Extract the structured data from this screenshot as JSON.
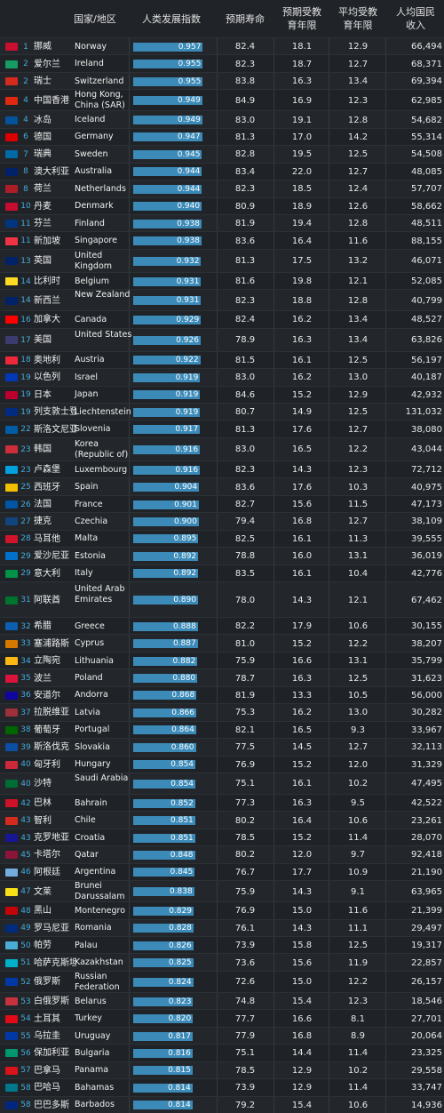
{
  "chart_data": {
    "type": "table",
    "columns": [
      "国家/地区",
      "人类发展指数",
      "预期寿命",
      "预期受教\n育年限",
      "平均受教\n育年限",
      "人均国民\n收入"
    ],
    "hdi_scale_max": 1.0,
    "rows": [
      {
        "rank": "1",
        "zh": "挪威",
        "en": "Norway",
        "flag": "#c8102e",
        "hdi": "0.957",
        "life": "82.4",
        "expected_school": "18.1",
        "mean_school": "12.9",
        "gni": "66,494"
      },
      {
        "rank": "2",
        "zh": "爱尔兰",
        "en": "Ireland",
        "flag": "#169b62",
        "hdi": "0.955",
        "life": "82.3",
        "expected_school": "18.7",
        "mean_school": "12.7",
        "gni": "68,371"
      },
      {
        "rank": "2",
        "zh": "瑞士",
        "en": "Switzerland",
        "flag": "#d52b1e",
        "hdi": "0.955",
        "life": "83.8",
        "expected_school": "16.3",
        "mean_school": "13.4",
        "gni": "69,394"
      },
      {
        "rank": "4",
        "zh": "中国香港",
        "en": "Hong Kong, China (SAR)",
        "flag": "#de2910",
        "hdi": "0.949",
        "life": "84.9",
        "expected_school": "16.9",
        "mean_school": "12.3",
        "gni": "62,985"
      },
      {
        "rank": "4",
        "zh": "冰岛",
        "en": "Iceland",
        "flag": "#02529c",
        "hdi": "0.949",
        "life": "83.0",
        "expected_school": "19.1",
        "mean_school": "12.8",
        "gni": "54,682"
      },
      {
        "rank": "6",
        "zh": "德国",
        "en": "Germany",
        "flag": "#dd0000",
        "hdi": "0.947",
        "life": "81.3",
        "expected_school": "17.0",
        "mean_school": "14.2",
        "gni": "55,314"
      },
      {
        "rank": "7",
        "zh": "瑞典",
        "en": "Sweden",
        "flag": "#006aa7",
        "hdi": "0.945",
        "life": "82.8",
        "expected_school": "19.5",
        "mean_school": "12.5",
        "gni": "54,508"
      },
      {
        "rank": "8",
        "zh": "澳大利亚",
        "en": "Australia",
        "flag": "#012169",
        "hdi": "0.944",
        "life": "83.4",
        "expected_school": "22.0",
        "mean_school": "12.7",
        "gni": "48,085"
      },
      {
        "rank": "8",
        "zh": "荷兰",
        "en": "Netherlands",
        "flag": "#ae1c28",
        "hdi": "0.944",
        "life": "82.3",
        "expected_school": "18.5",
        "mean_school": "12.4",
        "gni": "57,707"
      },
      {
        "rank": "10",
        "zh": "丹麦",
        "en": "Denmark",
        "flag": "#c60c30",
        "hdi": "0.940",
        "life": "80.9",
        "expected_school": "18.9",
        "mean_school": "12.6",
        "gni": "58,662"
      },
      {
        "rank": "11",
        "zh": "芬兰",
        "en": "Finland",
        "flag": "#003580",
        "hdi": "0.938",
        "life": "81.9",
        "expected_school": "19.4",
        "mean_school": "12.8",
        "gni": "48,511"
      },
      {
        "rank": "11",
        "zh": "新加坡",
        "en": "Singapore",
        "flag": "#ef3340",
        "hdi": "0.938",
        "life": "83.6",
        "expected_school": "16.4",
        "mean_school": "11.6",
        "gni": "88,155"
      },
      {
        "rank": "13",
        "zh": "英国",
        "en": "United Kingdom",
        "flag": "#012169",
        "hdi": "0.932",
        "life": "81.3",
        "expected_school": "17.5",
        "mean_school": "13.2",
        "gni": "46,071"
      },
      {
        "rank": "14",
        "zh": "比利时",
        "en": "Belgium",
        "flag": "#fdda24",
        "hdi": "0.931",
        "life": "81.6",
        "expected_school": "19.8",
        "mean_school": "12.1",
        "gni": "52,085"
      },
      {
        "rank": "14",
        "zh": "新西兰",
        "en": "New Zealand",
        "flag": "#012169",
        "hdi": "0.931",
        "life": "82.3",
        "expected_school": "18.8",
        "mean_school": "12.8",
        "gni": "40,799"
      },
      {
        "rank": "16",
        "zh": "加拿大",
        "en": "Canada",
        "flag": "#ff0000",
        "hdi": "0.929",
        "life": "82.4",
        "expected_school": "16.2",
        "mean_school": "13.4",
        "gni": "48,527"
      },
      {
        "rank": "17",
        "zh": "美国",
        "en": "United States",
        "flag": "#3c3b6e",
        "hdi": "0.926",
        "life": "78.9",
        "expected_school": "16.3",
        "mean_school": "13.4",
        "gni": "63,826"
      },
      {
        "rank": "18",
        "zh": "奥地利",
        "en": "Austria",
        "flag": "#ed2939",
        "hdi": "0.922",
        "life": "81.5",
        "expected_school": "16.1",
        "mean_school": "12.5",
        "gni": "56,197"
      },
      {
        "rank": "19",
        "zh": "以色列",
        "en": "Israel",
        "flag": "#0038b8",
        "hdi": "0.919",
        "life": "83.0",
        "expected_school": "16.2",
        "mean_school": "13.0",
        "gni": "40,187"
      },
      {
        "rank": "19",
        "zh": "日本",
        "en": "Japan",
        "flag": "#bc002d",
        "hdi": "0.919",
        "life": "84.6",
        "expected_school": "15.2",
        "mean_school": "12.9",
        "gni": "42,932"
      },
      {
        "rank": "19",
        "zh": "列支敦士登",
        "en": "Liechtenstein",
        "flag": "#002b7f",
        "hdi": "0.919",
        "life": "80.7",
        "expected_school": "14.9",
        "mean_school": "12.5",
        "gni": "131,032"
      },
      {
        "rank": "22",
        "zh": "斯洛文尼亚",
        "en": "Slovenia",
        "flag": "#005da4",
        "hdi": "0.917",
        "life": "81.3",
        "expected_school": "17.6",
        "mean_school": "12.7",
        "gni": "38,080"
      },
      {
        "rank": "23",
        "zh": "韩国",
        "en": "Korea (Republic of)",
        "flag": "#cd2e3a",
        "hdi": "0.916",
        "life": "83.0",
        "expected_school": "16.5",
        "mean_school": "12.2",
        "gni": "43,044"
      },
      {
        "rank": "23",
        "zh": "卢森堡",
        "en": "Luxembourg",
        "flag": "#00a1de",
        "hdi": "0.916",
        "life": "82.3",
        "expected_school": "14.3",
        "mean_school": "12.3",
        "gni": "72,712"
      },
      {
        "rank": "25",
        "zh": "西班牙",
        "en": "Spain",
        "flag": "#f1bf00",
        "hdi": "0.904",
        "life": "83.6",
        "expected_school": "17.6",
        "mean_school": "10.3",
        "gni": "40,975"
      },
      {
        "rank": "26",
        "zh": "法国",
        "en": "France",
        "flag": "#0055a4",
        "hdi": "0.901",
        "life": "82.7",
        "expected_school": "15.6",
        "mean_school": "11.5",
        "gni": "47,173"
      },
      {
        "rank": "27",
        "zh": "捷克",
        "en": "Czechia",
        "flag": "#11457e",
        "hdi": "0.900",
        "life": "79.4",
        "expected_school": "16.8",
        "mean_school": "12.7",
        "gni": "38,109"
      },
      {
        "rank": "28",
        "zh": "马耳他",
        "en": "Malta",
        "flag": "#cf142b",
        "hdi": "0.895",
        "life": "82.5",
        "expected_school": "16.1",
        "mean_school": "11.3",
        "gni": "39,555"
      },
      {
        "rank": "29",
        "zh": "爱沙尼亚",
        "en": "Estonia",
        "flag": "#0072ce",
        "hdi": "0.892",
        "life": "78.8",
        "expected_school": "16.0",
        "mean_school": "13.1",
        "gni": "36,019"
      },
      {
        "rank": "29",
        "zh": "意大利",
        "en": "Italy",
        "flag": "#009246",
        "hdi": "0.892",
        "life": "83.5",
        "expected_school": "16.1",
        "mean_school": "10.4",
        "gni": "42,776"
      },
      {
        "rank": "31",
        "zh": "阿联酋",
        "en": "United Arab Emirates",
        "flag": "#00732f",
        "hdi": "0.890",
        "life": "78.0",
        "expected_school": "14.3",
        "mean_school": "12.1",
        "gni": "67,462"
      },
      {
        "rank": "32",
        "zh": "希腊",
        "en": "Greece",
        "flag": "#0d5eaf",
        "hdi": "0.888",
        "life": "82.2",
        "expected_school": "17.9",
        "mean_school": "10.6",
        "gni": "30,155"
      },
      {
        "rank": "33",
        "zh": "塞浦路斯",
        "en": "Cyprus",
        "flag": "#d57800",
        "hdi": "0.887",
        "life": "81.0",
        "expected_school": "15.2",
        "mean_school": "12.2",
        "gni": "38,207"
      },
      {
        "rank": "34",
        "zh": "立陶宛",
        "en": "Lithuania",
        "flag": "#fdb913",
        "hdi": "0.882",
        "life": "75.9",
        "expected_school": "16.6",
        "mean_school": "13.1",
        "gni": "35,799"
      },
      {
        "rank": "35",
        "zh": "波兰",
        "en": "Poland",
        "flag": "#dc143c",
        "hdi": "0.880",
        "life": "78.7",
        "expected_school": "16.3",
        "mean_school": "12.5",
        "gni": "31,623"
      },
      {
        "rank": "36",
        "zh": "安道尔",
        "en": "Andorra",
        "flag": "#10069f",
        "hdi": "0.868",
        "life": "81.9",
        "expected_school": "13.3",
        "mean_school": "10.5",
        "gni": "56,000"
      },
      {
        "rank": "37",
        "zh": "拉脱维亚",
        "en": "Latvia",
        "flag": "#9e3039",
        "hdi": "0.866",
        "life": "75.3",
        "expected_school": "16.2",
        "mean_school": "13.0",
        "gni": "30,282"
      },
      {
        "rank": "38",
        "zh": "葡萄牙",
        "en": "Portugal",
        "flag": "#006600",
        "hdi": "0.864",
        "life": "82.1",
        "expected_school": "16.5",
        "mean_school": "9.3",
        "gni": "33,967"
      },
      {
        "rank": "39",
        "zh": "斯洛伐克",
        "en": "Slovakia",
        "flag": "#0b4ea2",
        "hdi": "0.860",
        "life": "77.5",
        "expected_school": "14.5",
        "mean_school": "12.7",
        "gni": "32,113"
      },
      {
        "rank": "40",
        "zh": "匈牙利",
        "en": "Hungary",
        "flag": "#ce2939",
        "hdi": "0.854",
        "life": "76.9",
        "expected_school": "15.2",
        "mean_school": "12.0",
        "gni": "31,329"
      },
      {
        "rank": "40",
        "zh": "沙特",
        "en": "Saudi Arabia",
        "flag": "#006c35",
        "hdi": "0.854",
        "life": "75.1",
        "expected_school": "16.1",
        "mean_school": "10.2",
        "gni": "47,495"
      },
      {
        "rank": "42",
        "zh": "巴林",
        "en": "Bahrain",
        "flag": "#ce1126",
        "hdi": "0.852",
        "life": "77.3",
        "expected_school": "16.3",
        "mean_school": "9.5",
        "gni": "42,522"
      },
      {
        "rank": "43",
        "zh": "智利",
        "en": "Chile",
        "flag": "#d52b1e",
        "hdi": "0.851",
        "life": "80.2",
        "expected_school": "16.4",
        "mean_school": "10.6",
        "gni": "23,261"
      },
      {
        "rank": "43",
        "zh": "克罗地亚",
        "en": "Croatia",
        "flag": "#171796",
        "hdi": "0.851",
        "life": "78.5",
        "expected_school": "15.2",
        "mean_school": "11.4",
        "gni": "28,070"
      },
      {
        "rank": "45",
        "zh": "卡塔尔",
        "en": "Qatar",
        "flag": "#8a1538",
        "hdi": "0.848",
        "life": "80.2",
        "expected_school": "12.0",
        "mean_school": "9.7",
        "gni": "92,418"
      },
      {
        "rank": "46",
        "zh": "阿根廷",
        "en": "Argentina",
        "flag": "#74acdf",
        "hdi": "0.845",
        "life": "76.7",
        "expected_school": "17.7",
        "mean_school": "10.9",
        "gni": "21,190"
      },
      {
        "rank": "47",
        "zh": "文莱",
        "en": "Brunei Darussalam",
        "flag": "#f7e017",
        "hdi": "0.838",
        "life": "75.9",
        "expected_school": "14.3",
        "mean_school": "9.1",
        "gni": "63,965"
      },
      {
        "rank": "48",
        "zh": "黑山",
        "en": "Montenegro",
        "flag": "#c40308",
        "hdi": "0.829",
        "life": "76.9",
        "expected_school": "15.0",
        "mean_school": "11.6",
        "gni": "21,399"
      },
      {
        "rank": "49",
        "zh": "罗马尼亚",
        "en": "Romania",
        "flag": "#002b7f",
        "hdi": "0.828",
        "life": "76.1",
        "expected_school": "14.3",
        "mean_school": "11.1",
        "gni": "29,497"
      },
      {
        "rank": "50",
        "zh": "帕劳",
        "en": "Palau",
        "flag": "#4aadd6",
        "hdi": "0.826",
        "life": "73.9",
        "expected_school": "15.8",
        "mean_school": "12.5",
        "gni": "19,317"
      },
      {
        "rank": "51",
        "zh": "哈萨克斯坦",
        "en": "Kazakhstan",
        "flag": "#00afca",
        "hdi": "0.825",
        "life": "73.6",
        "expected_school": "15.6",
        "mean_school": "11.9",
        "gni": "22,857"
      },
      {
        "rank": "52",
        "zh": "俄罗斯",
        "en": "Russian Federation",
        "flag": "#0039a6",
        "hdi": "0.824",
        "life": "72.6",
        "expected_school": "15.0",
        "mean_school": "12.2",
        "gni": "26,157"
      },
      {
        "rank": "53",
        "zh": "白俄罗斯",
        "en": "Belarus",
        "flag": "#c8313e",
        "hdi": "0.823",
        "life": "74.8",
        "expected_school": "15.4",
        "mean_school": "12.3",
        "gni": "18,546"
      },
      {
        "rank": "54",
        "zh": "土耳其",
        "en": "Turkey",
        "flag": "#e30a17",
        "hdi": "0.820",
        "life": "77.7",
        "expected_school": "16.6",
        "mean_school": "8.1",
        "gni": "27,701"
      },
      {
        "rank": "55",
        "zh": "乌拉圭",
        "en": "Uruguay",
        "flag": "#0038a8",
        "hdi": "0.817",
        "life": "77.9",
        "expected_school": "16.8",
        "mean_school": "8.9",
        "gni": "20,064"
      },
      {
        "rank": "56",
        "zh": "保加利亚",
        "en": "Bulgaria",
        "flag": "#00966e",
        "hdi": "0.816",
        "life": "75.1",
        "expected_school": "14.4",
        "mean_school": "11.4",
        "gni": "23,325"
      },
      {
        "rank": "57",
        "zh": "巴拿马",
        "en": "Panama",
        "flag": "#da121a",
        "hdi": "0.815",
        "life": "78.5",
        "expected_school": "12.9",
        "mean_school": "10.2",
        "gni": "29,558"
      },
      {
        "rank": "58",
        "zh": "巴哈马",
        "en": "Bahamas",
        "flag": "#00778b",
        "hdi": "0.814",
        "life": "73.9",
        "expected_school": "12.9",
        "mean_school": "11.4",
        "gni": "33,747"
      },
      {
        "rank": "58",
        "zh": "巴巴多斯",
        "en": "Barbados",
        "flag": "#00267f",
        "hdi": "0.814",
        "life": "79.2",
        "expected_school": "15.4",
        "mean_school": "10.6",
        "gni": "14,936"
      }
    ]
  }
}
